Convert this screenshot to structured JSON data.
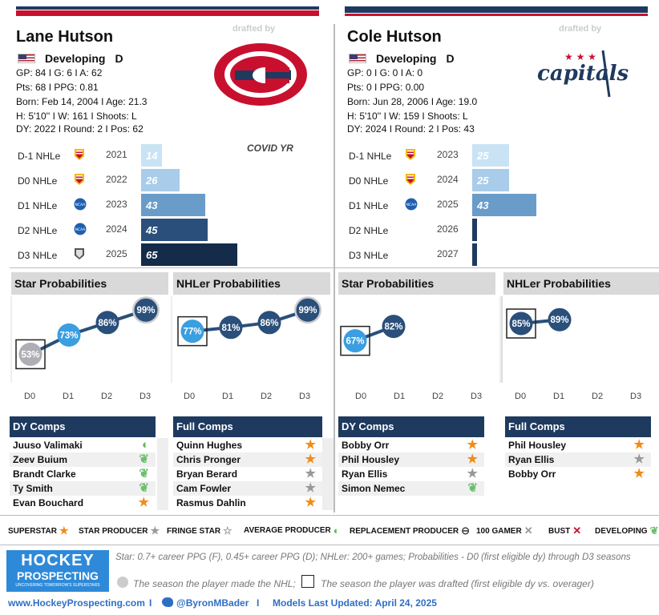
{
  "colors": {
    "navy": "#1f3a5f",
    "red": "#c8102e",
    "light1": "#c9e3f5",
    "light2": "#a8cce9",
    "mid": "#6a9cc9",
    "dark1": "#2a4f7a",
    "dark2": "#142b4a",
    "gray": "#b0aeb5",
    "cyan": "#3a9ee0"
  },
  "left": {
    "name": "Lane Hutson",
    "status": "Developing",
    "position": "D",
    "stats": [
      "GP: 84 I G: 6 I A: 62",
      "Pts: 68 I PPG: 0.81",
      "Born: Feb 14, 2004 I Age: 21.3",
      "H: 5'10'' I W: 161 I Shoots: L",
      "DY: 2022 I Round: 2 I Pos: 62"
    ],
    "drafted_by": "drafted by",
    "note": "COVID YR",
    "rows": [
      {
        "label": "D-1 NHLe",
        "year": "2021",
        "value": "14",
        "badge": "usntdp-badge"
      },
      {
        "label": "D0 NHLe",
        "year": "2022",
        "value": "26",
        "badge": "usntdp-badge"
      },
      {
        "label": "D1 NHLe",
        "year": "2023",
        "value": "43",
        "badge": "ncaa-badge"
      },
      {
        "label": "D2 NHLe",
        "year": "2024",
        "value": "45",
        "badge": "ncaa-badge"
      },
      {
        "label": "D3 NHLe",
        "year": "2025",
        "value": "65",
        "badge": "nhl-badge"
      }
    ],
    "star_title": "Star Probabilities",
    "star": [
      {
        "d": "D0",
        "v": "53%"
      },
      {
        "d": "D1",
        "v": "73%"
      },
      {
        "d": "D2",
        "v": "86%"
      },
      {
        "d": "D3",
        "v": "99%"
      }
    ],
    "nhler_title": "NHLer Probabilities",
    "nhler": [
      {
        "d": "D0",
        "v": "77%"
      },
      {
        "d": "D1",
        "v": "81%"
      },
      {
        "d": "D2",
        "v": "86%"
      },
      {
        "d": "D3",
        "v": "99%"
      }
    ],
    "dy_title": "DY Comps",
    "dy": [
      {
        "n": "Juuso Valimaki",
        "i": "half-circle-icon"
      },
      {
        "n": "Zeev Buium",
        "i": "leaf-icon"
      },
      {
        "n": "Brandt Clarke",
        "i": "leaf-icon"
      },
      {
        "n": "Ty Smith",
        "i": "leaf-icon"
      },
      {
        "n": "Evan Bouchard",
        "i": "star-gold-icon"
      }
    ],
    "full_title": "Full Comps",
    "full": [
      {
        "n": "Quinn Hughes",
        "i": "star-gold-icon"
      },
      {
        "n": "Chris Pronger",
        "i": "star-gold-icon"
      },
      {
        "n": "Bryan Berard",
        "i": "star-gray-icon"
      },
      {
        "n": "Cam Fowler",
        "i": "star-gray-icon"
      },
      {
        "n": "Rasmus Dahlin",
        "i": "star-gold-icon"
      }
    ]
  },
  "right": {
    "name": "Cole Hutson",
    "status": "Developing",
    "position": "D",
    "stats": [
      "GP: 0 I G: 0 I A: 0",
      "Pts: 0 I PPG: 0.00",
      "Born: Jun 28, 2006 I Age: 19.0",
      "H: 5'10'' I W: 159 I Shoots: L",
      "DY: 2024 I Round: 2 I Pos: 43"
    ],
    "drafted_by": "drafted by",
    "rows": [
      {
        "label": "D-1 NHLe",
        "year": "2023",
        "value": "25",
        "badge": "usntdp-badge"
      },
      {
        "label": "D0 NHLe",
        "year": "2024",
        "value": "25",
        "badge": "usntdp-badge"
      },
      {
        "label": "D1 NHLe",
        "year": "2025",
        "value": "43",
        "badge": "ncaa-badge"
      },
      {
        "label": "D2 NHLe",
        "year": "2026",
        "value": "",
        "badge": ""
      },
      {
        "label": "D3 NHLe",
        "year": "2027",
        "value": "",
        "badge": ""
      }
    ],
    "star_title": "Star Probabilities",
    "star": [
      {
        "d": "D0",
        "v": "67%"
      },
      {
        "d": "D1",
        "v": "82%"
      },
      {
        "d": "D2",
        "v": ""
      },
      {
        "d": "D3",
        "v": ""
      }
    ],
    "nhler_title": "NHLer Probabilities",
    "nhler": [
      {
        "d": "D0",
        "v": "85%"
      },
      {
        "d": "D1",
        "v": "89%"
      },
      {
        "d": "D2",
        "v": ""
      },
      {
        "d": "D3",
        "v": ""
      }
    ],
    "dy_title": "DY Comps",
    "dy": [
      {
        "n": "Bobby Orr",
        "i": "star-gold-icon"
      },
      {
        "n": "Phil Housley",
        "i": "star-gold-icon"
      },
      {
        "n": "Ryan Ellis",
        "i": "star-gray-icon"
      },
      {
        "n": "Simon Nemec",
        "i": "leaf-icon"
      }
    ],
    "full_title": "Full Comps",
    "full": [
      {
        "n": "Phil Housley",
        "i": "star-gold-icon"
      },
      {
        "n": "Ryan Ellis",
        "i": "star-gray-icon"
      },
      {
        "n": "Bobby Orr",
        "i": "star-gold-icon"
      }
    ]
  },
  "legend": [
    {
      "label": "SUPERSTAR",
      "i": "star-gold-icon"
    },
    {
      "label": "STAR PRODUCER",
      "i": "star-gray-icon"
    },
    {
      "label": "FRINGE STAR",
      "i": "star-outline-icon"
    },
    {
      "label": "AVERAGE PRODUCER",
      "i": "half-circle-icon"
    },
    {
      "label": "REPLACEMENT PRODUCER",
      "i": "minus-circle-icon"
    },
    {
      "label": "100 GAMER",
      "i": "x-gray-icon"
    },
    {
      "label": "BUST",
      "i": "x-red-icon"
    },
    {
      "label": "DEVELOPING",
      "i": "leaf-icon"
    }
  ],
  "footer": {
    "logo_top": "HOCKEY",
    "logo_mid": "PROSPECTING",
    "logo_tag": "UNCOVERING TOMORROW'S SUPERSTARS",
    "def": "Star: 0.7+ career PPG (F), 0.45+ career PPG (D); NHLer: 200+ games; Probabilities - D0 (first eligible dy) through D3 seasons",
    "made": "The season the player made the NHL;",
    "drafted": "The season the player was drafted (first eligible dy vs. overager)",
    "site": "www.HockeyProspecting.com",
    "sep": "I",
    "twitter": "@ByronMBader",
    "updated": "Models Last Updated: April 24, 2025"
  }
}
